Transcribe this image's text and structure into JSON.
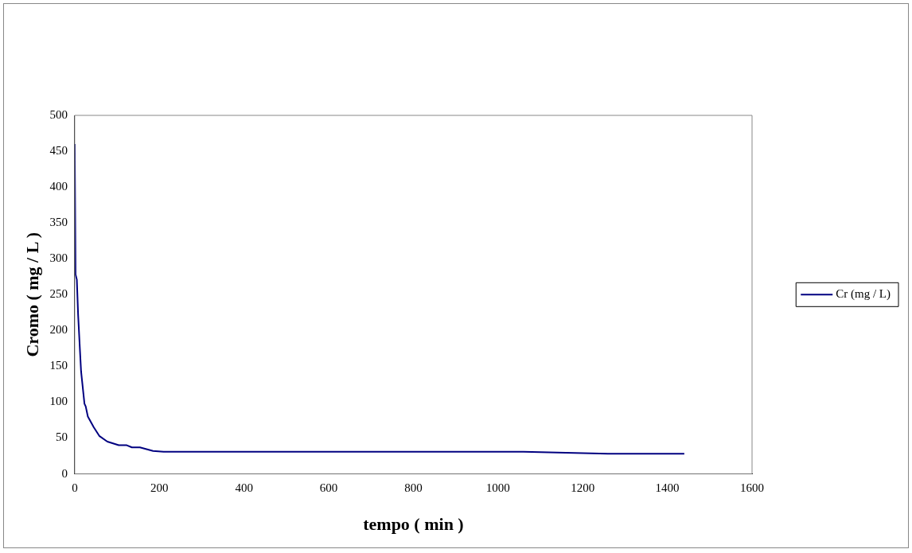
{
  "chart_data": {
    "type": "line",
    "xlabel": "tempo ( min )",
    "ylabel": "Cromo ( mg / L )",
    "xlim": [
      0,
      1600
    ],
    "xticks": [
      0,
      200,
      400,
      600,
      800,
      1000,
      1200,
      1400,
      1600
    ],
    "ylim": [
      0,
      500
    ],
    "yticks": [
      0,
      50,
      100,
      150,
      200,
      250,
      300,
      350,
      400,
      450,
      500
    ],
    "grid": false,
    "legend": "right",
    "marker": "none",
    "line_style": "solid",
    "series": [
      {
        "name": "Cr (mg / L)",
        "color": "#000080",
        "x": [
          0,
          2,
          5,
          8,
          13,
          15,
          23,
          26,
          31,
          45,
          58,
          77,
          104,
          123,
          135,
          154,
          185,
          210,
          400,
          600,
          800,
          1060,
          1260,
          1440
        ],
        "values": [
          460,
          278,
          271,
          222,
          165,
          143,
          98,
          94,
          80,
          65,
          53,
          45,
          40,
          40,
          37,
          37,
          32,
          31,
          31,
          31,
          31,
          31,
          28,
          28
        ]
      }
    ]
  }
}
